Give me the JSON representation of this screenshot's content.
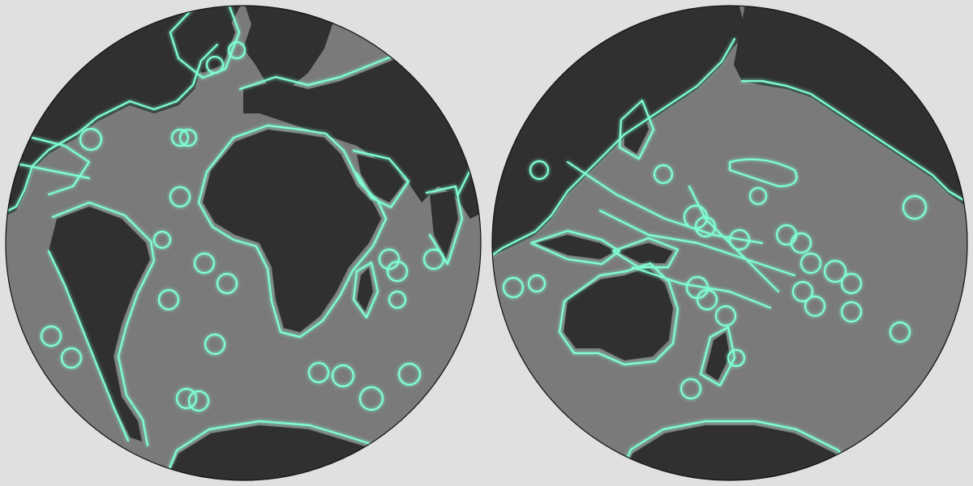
{
  "colors": {
    "background": "#e0e0e0",
    "ocean": "#7a7a7a",
    "ocean_deep": "#6c6c6c",
    "land": "#303030",
    "boundary": "#7fffd4",
    "outline": "#111111"
  },
  "hemispheres": [
    {
      "id": "atlantic-hemisphere",
      "label": ""
    },
    {
      "id": "pacific-hemisphere",
      "label": ""
    }
  ]
}
